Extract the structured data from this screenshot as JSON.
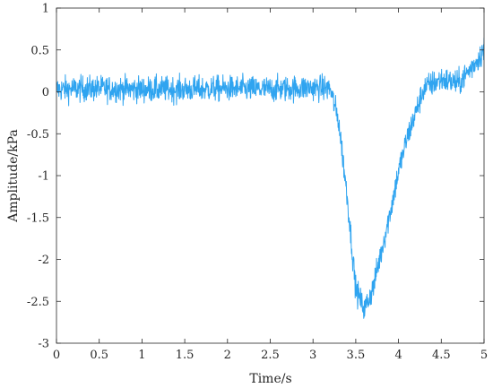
{
  "chart_data": {
    "type": "line",
    "title": "",
    "xlabel": "Time/s",
    "ylabel": "Amplitude/kPa",
    "xlim": [
      0,
      5
    ],
    "ylim": [
      -3,
      1
    ],
    "xticks": [
      0,
      0.5,
      1,
      1.5,
      2,
      2.5,
      3,
      3.5,
      4,
      4.5,
      5
    ],
    "xtick_labels": [
      "0",
      "0.5",
      "1",
      "1.5",
      "2",
      "2.5",
      "3",
      "3.5",
      "4",
      "4.5",
      "5"
    ],
    "yticks": [
      -3,
      -2.5,
      -2,
      -1.5,
      -1,
      -0.5,
      0,
      0.5,
      1
    ],
    "ytick_labels": [
      "-3",
      "-2.5",
      "-2",
      "-1.5",
      "-1",
      "-0.5",
      "0",
      "0.5",
      "1"
    ],
    "grid": false,
    "legend": "none",
    "series": [
      {
        "color": "#2fa4f0",
        "noise_amplitude": 0.15,
        "x": [
          0,
          0.5,
          1,
          1.5,
          2,
          2.5,
          3,
          3.2,
          3.3,
          3.4,
          3.5,
          3.6,
          3.7,
          3.8,
          3.9,
          4.0,
          4.1,
          4.2,
          4.3,
          4.5,
          4.7,
          4.8,
          4.9,
          5.0
        ],
        "values": [
          0.03,
          0.04,
          0.03,
          0.03,
          0.04,
          0.03,
          0.05,
          0.04,
          -0.35,
          -1.25,
          -2.35,
          -2.6,
          -2.35,
          -1.9,
          -1.45,
          -0.95,
          -0.55,
          -0.25,
          0.05,
          0.15,
          0.1,
          0.22,
          0.35,
          0.5
        ]
      }
    ]
  }
}
